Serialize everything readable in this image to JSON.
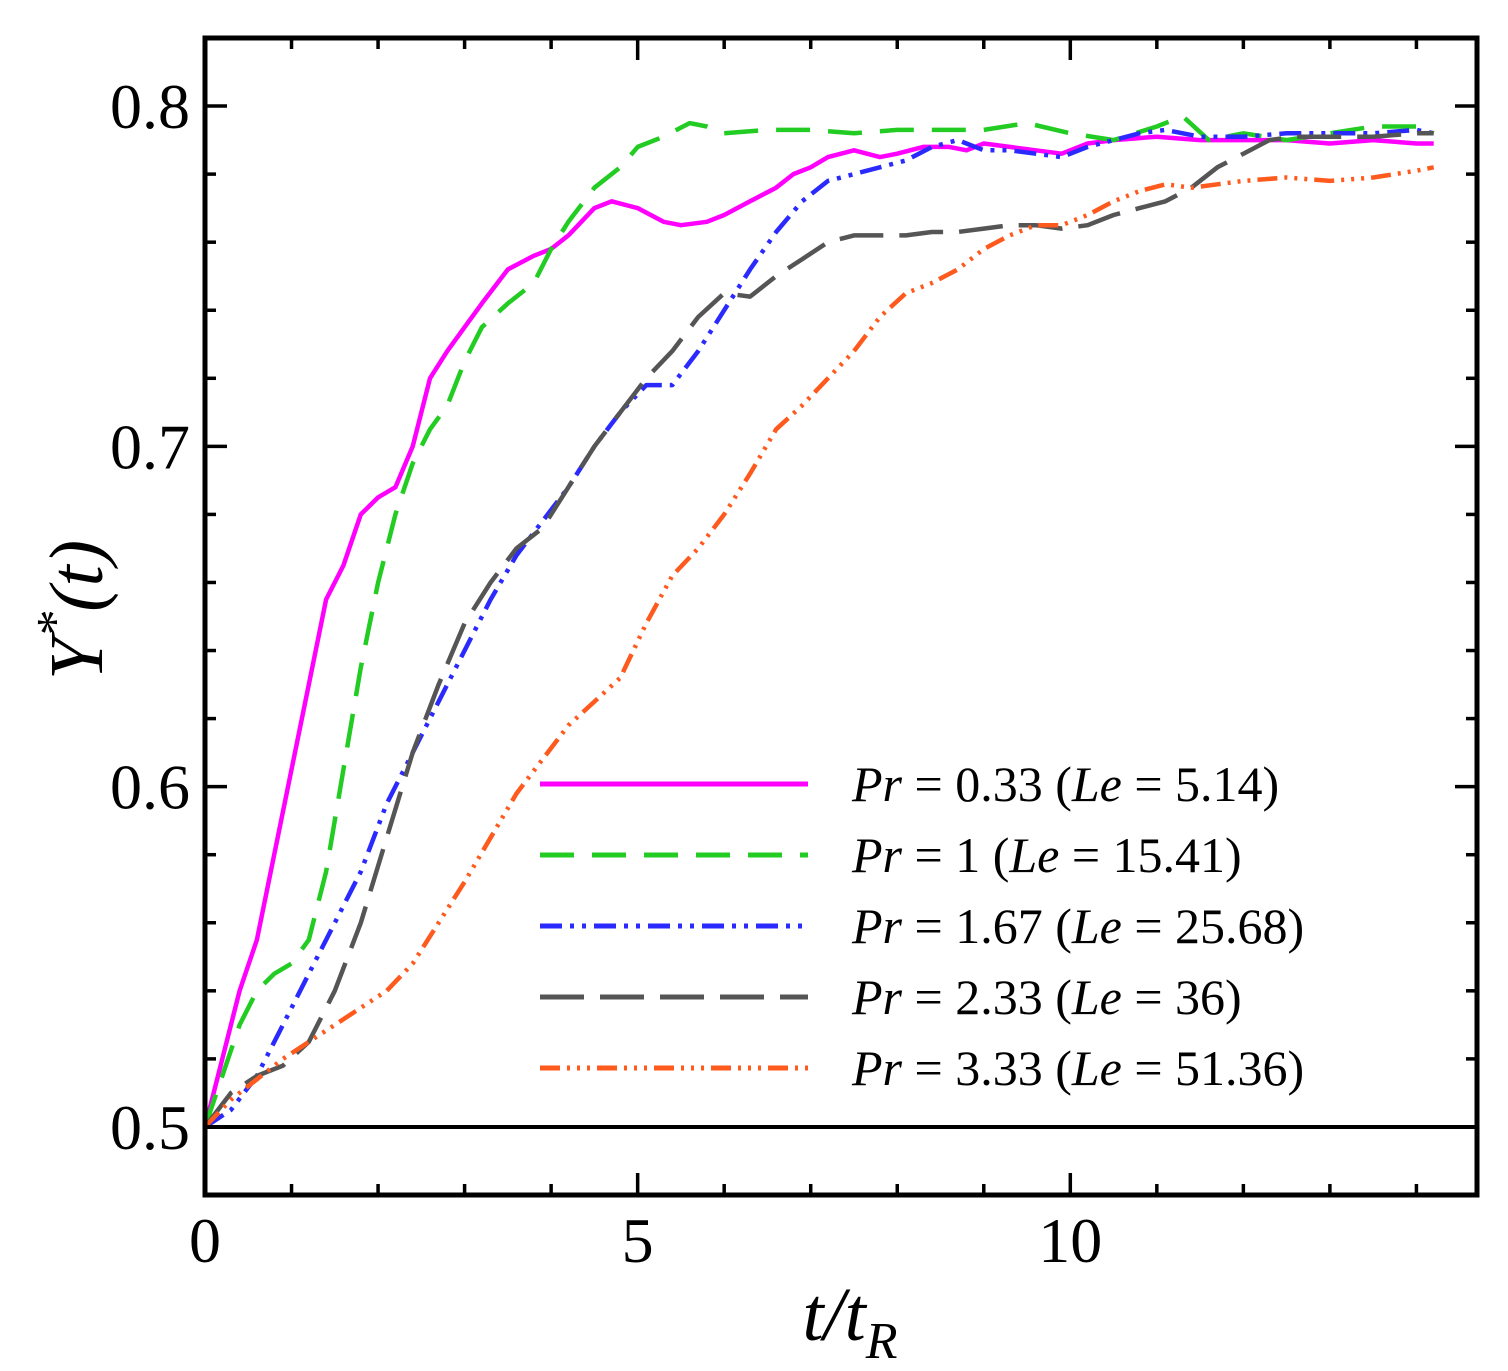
{
  "chart_data": {
    "type": "line",
    "title": "",
    "xlabel": "t/t_R",
    "ylabel": "Y*(t)",
    "xlim": [
      0,
      14.7
    ],
    "ylim": [
      0.48,
      0.82
    ],
    "x_ticks": [
      0,
      5,
      10
    ],
    "x_tick_labels": [
      "0",
      "5",
      "10"
    ],
    "y_ticks": [
      0.5,
      0.6,
      0.7,
      0.8
    ],
    "y_tick_labels": [
      "0.5",
      "0.6",
      "0.7",
      "0.8"
    ],
    "legend_position": "lower-right",
    "series": [
      {
        "name": "Pr = 0.33 (Le = 5.14)",
        "label_parts": {
          "var1": "Pr",
          "eq1": " = 0.33 (",
          "var2": "Le",
          "eq2": " = 5.14)"
        },
        "color": "#ff00ff",
        "dash": "solid",
        "x": [
          0,
          0.2,
          0.4,
          0.6,
          0.8,
          1.0,
          1.2,
          1.4,
          1.6,
          1.8,
          2.0,
          2.2,
          2.4,
          2.6,
          2.8,
          3.0,
          3.2,
          3.5,
          3.8,
          4.0,
          4.2,
          4.5,
          4.7,
          5.0,
          5.3,
          5.5,
          5.8,
          6.0,
          6.3,
          6.6,
          6.8,
          7.0,
          7.2,
          7.5,
          7.8,
          8.0,
          8.3,
          8.6,
          8.8,
          9.0,
          9.3,
          9.6,
          9.9,
          10.2,
          10.5,
          11.0,
          11.5,
          12.0,
          12.5,
          13.0,
          13.5,
          14.0,
          14.2
        ],
        "y": [
          0.5,
          0.52,
          0.54,
          0.555,
          0.58,
          0.605,
          0.63,
          0.655,
          0.665,
          0.68,
          0.685,
          0.688,
          0.7,
          0.72,
          0.728,
          0.735,
          0.742,
          0.752,
          0.756,
          0.758,
          0.762,
          0.77,
          0.772,
          0.77,
          0.766,
          0.765,
          0.766,
          0.768,
          0.772,
          0.776,
          0.78,
          0.782,
          0.785,
          0.787,
          0.785,
          0.786,
          0.788,
          0.788,
          0.787,
          0.789,
          0.788,
          0.787,
          0.786,
          0.789,
          0.79,
          0.791,
          0.79,
          0.79,
          0.79,
          0.789,
          0.79,
          0.789,
          0.789
        ]
      },
      {
        "name": "Pr = 1 (Le = 15.41)",
        "label_parts": {
          "var1": "Pr",
          "eq1": " = 1 (",
          "var2": "Le",
          "eq2": " = 15.41)"
        },
        "color": "#22cc22",
        "dash": "dashed",
        "x": [
          0,
          0.2,
          0.4,
          0.6,
          0.8,
          1.0,
          1.2,
          1.4,
          1.6,
          1.8,
          2.0,
          2.2,
          2.4,
          2.6,
          2.8,
          3.0,
          3.2,
          3.5,
          3.8,
          4.0,
          4.2,
          4.5,
          4.8,
          5.0,
          5.3,
          5.6,
          5.8,
          6.0,
          6.5,
          7.0,
          7.5,
          8.0,
          8.5,
          9.0,
          9.5,
          10.0,
          10.5,
          11.0,
          11.3,
          11.6,
          12.0,
          12.5,
          13.0,
          13.5,
          14.0,
          14.2
        ],
        "y": [
          0.5,
          0.515,
          0.53,
          0.54,
          0.545,
          0.548,
          0.555,
          0.575,
          0.605,
          0.635,
          0.66,
          0.68,
          0.695,
          0.705,
          0.712,
          0.725,
          0.735,
          0.742,
          0.748,
          0.758,
          0.766,
          0.776,
          0.782,
          0.788,
          0.791,
          0.795,
          0.794,
          0.792,
          0.793,
          0.793,
          0.792,
          0.793,
          0.793,
          0.793,
          0.795,
          0.792,
          0.79,
          0.794,
          0.797,
          0.79,
          0.792,
          0.79,
          0.792,
          0.794,
          0.794,
          0.792
        ]
      },
      {
        "name": "Pr = 1.67 (Le = 25.68)",
        "label_parts": {
          "var1": "Pr",
          "eq1": " = 1.67 (",
          "var2": "Le",
          "eq2": " = 25.68)"
        },
        "color": "#2a2aff",
        "dash": "dashdotdot",
        "x": [
          0,
          0.3,
          0.6,
          0.9,
          1.2,
          1.5,
          1.8,
          2.1,
          2.4,
          2.7,
          3.0,
          3.3,
          3.6,
          3.9,
          4.2,
          4.5,
          4.8,
          5.1,
          5.4,
          5.7,
          6.0,
          6.3,
          6.6,
          6.9,
          7.2,
          7.5,
          7.8,
          8.1,
          8.4,
          8.7,
          9.0,
          9.3,
          9.6,
          9.9,
          10.2,
          10.5,
          10.8,
          11.1,
          11.5,
          12.0,
          12.5,
          13.0,
          13.5,
          14.0,
          14.2
        ],
        "y": [
          0.5,
          0.505,
          0.515,
          0.53,
          0.545,
          0.56,
          0.575,
          0.595,
          0.61,
          0.625,
          0.64,
          0.655,
          0.668,
          0.678,
          0.688,
          0.7,
          0.71,
          0.718,
          0.718,
          0.728,
          0.74,
          0.752,
          0.763,
          0.772,
          0.778,
          0.78,
          0.782,
          0.784,
          0.788,
          0.79,
          0.787,
          0.787,
          0.786,
          0.785,
          0.788,
          0.79,
          0.792,
          0.793,
          0.791,
          0.791,
          0.792,
          0.792,
          0.792,
          0.793,
          0.792
        ]
      },
      {
        "name": "Pr = 2.33 (Le = 36)",
        "label_parts": {
          "var1": "Pr",
          "eq1": " = 2.33 (",
          "var2": "Le",
          "eq2": " = 36)"
        },
        "color": "#555555",
        "dash": "longdash",
        "x": [
          0,
          0.3,
          0.6,
          0.9,
          1.2,
          1.5,
          1.8,
          2.1,
          2.4,
          2.7,
          3.0,
          3.3,
          3.6,
          3.9,
          4.2,
          4.5,
          4.8,
          5.1,
          5.4,
          5.7,
          6.0,
          6.3,
          6.6,
          6.9,
          7.2,
          7.5,
          7.8,
          8.1,
          8.4,
          8.7,
          9.0,
          9.3,
          9.6,
          9.9,
          10.2,
          10.5,
          10.8,
          11.1,
          11.4,
          11.7,
          12.0,
          12.3,
          12.6,
          13.0,
          13.5,
          14.0,
          14.2
        ],
        "y": [
          0.5,
          0.51,
          0.515,
          0.518,
          0.525,
          0.54,
          0.56,
          0.585,
          0.61,
          0.63,
          0.648,
          0.66,
          0.67,
          0.676,
          0.688,
          0.7,
          0.71,
          0.72,
          0.728,
          0.738,
          0.745,
          0.744,
          0.75,
          0.755,
          0.76,
          0.762,
          0.762,
          0.762,
          0.763,
          0.763,
          0.764,
          0.765,
          0.765,
          0.764,
          0.765,
          0.768,
          0.77,
          0.772,
          0.776,
          0.782,
          0.786,
          0.79,
          0.791,
          0.791,
          0.791,
          0.792,
          0.792
        ]
      },
      {
        "name": "Pr = 3.33 (Le = 51.36)",
        "label_parts": {
          "var1": "Pr",
          "eq1": " = 3.33 (",
          "var2": "Le",
          "eq2": " = 51.36)"
        },
        "color": "#ff5a1e",
        "dash": "dashdotdotdot",
        "x": [
          0,
          0.3,
          0.6,
          0.9,
          1.2,
          1.5,
          1.8,
          2.1,
          2.4,
          2.7,
          3.0,
          3.3,
          3.6,
          3.9,
          4.2,
          4.5,
          4.8,
          5.1,
          5.4,
          5.7,
          6.0,
          6.3,
          6.6,
          6.9,
          7.2,
          7.5,
          7.8,
          8.1,
          8.4,
          8.7,
          9.0,
          9.3,
          9.6,
          9.9,
          10.2,
          10.5,
          10.8,
          11.1,
          11.4,
          11.7,
          12.0,
          12.5,
          13.0,
          13.5,
          14.0,
          14.2
        ],
        "y": [
          0.5,
          0.508,
          0.514,
          0.52,
          0.525,
          0.53,
          0.535,
          0.54,
          0.548,
          0.56,
          0.572,
          0.585,
          0.598,
          0.608,
          0.618,
          0.625,
          0.632,
          0.648,
          0.662,
          0.67,
          0.68,
          0.692,
          0.705,
          0.712,
          0.72,
          0.728,
          0.738,
          0.745,
          0.748,
          0.752,
          0.758,
          0.762,
          0.765,
          0.765,
          0.768,
          0.772,
          0.775,
          0.777,
          0.776,
          0.777,
          0.778,
          0.779,
          0.778,
          0.779,
          0.781,
          0.782
        ]
      }
    ]
  }
}
